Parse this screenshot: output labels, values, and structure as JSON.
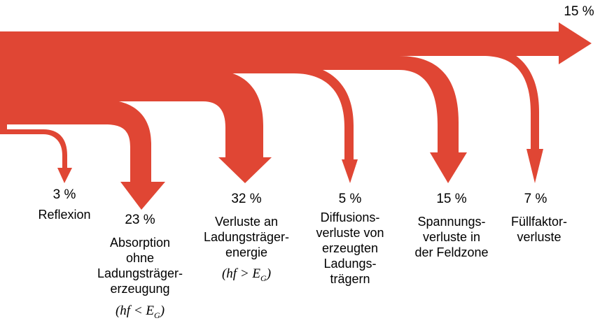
{
  "colors": {
    "flow": "#e04634",
    "background": "#ffffff",
    "text": "#000000"
  },
  "output": {
    "value": "15 %"
  },
  "losses": [
    {
      "value": "3 %",
      "label": "Reflexion"
    },
    {
      "value": "23 %",
      "label": "Absorption\nohne\nLadungsträger-\nerzeugung",
      "formula": {
        "lhs": "(hf",
        "op": "<",
        "rhs": "E",
        "sub": "G",
        "close": ")"
      }
    },
    {
      "value": "32 %",
      "label": "Verluste an\nLadungsträger-\nenergie",
      "formula": {
        "lhs": "(hf",
        "op": ">",
        "rhs": "E",
        "sub": "G",
        "close": ")"
      }
    },
    {
      "value": "5 %",
      "label": "Diffusions-\nverluste von\nerzeugten\nLadungs-\nträgern"
    },
    {
      "value": "15 %",
      "label": "Spannungs-\nverluste in\nder Feldzone"
    },
    {
      "value": "7 %",
      "label": "Füllfaktor-\nverluste"
    }
  ]
}
